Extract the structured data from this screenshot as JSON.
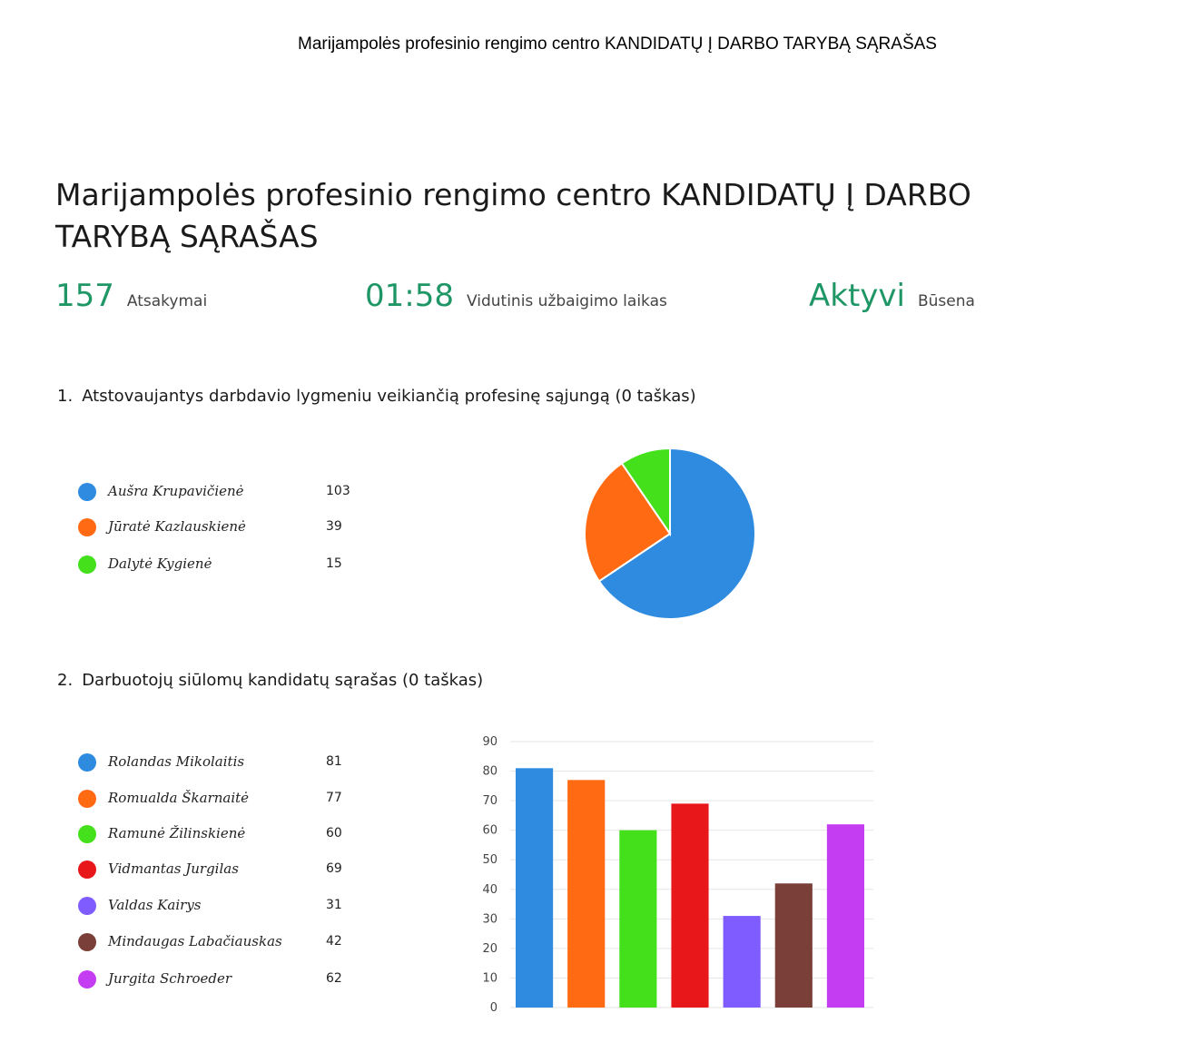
{
  "doc_header": "Marijampolės profesinio rengimo centro KANDIDATŲ Į DARBO TARYBĄ SĄRAŠAS",
  "form": {
    "title": "Marijampolės profesinio rengimo centro KANDIDATŲ Į DARBO TARYBĄ SĄRAŠAS"
  },
  "stats": {
    "responses": {
      "value": "157",
      "label": "Atsakymai"
    },
    "avg_time": {
      "value": "01:58",
      "label": "Vidutinis užbaigimo laikas"
    },
    "status": {
      "value": "Aktyvi",
      "label": "Būsena"
    },
    "accent_color": "#1f9665"
  },
  "questions": [
    {
      "number": "1.",
      "text": "Atstovaujantys darbdavio lygmeniu veikiančią profesinę sąjungą (0 taškas)",
      "options": [
        {
          "name": "Aušra Krupavičienė",
          "count": "103",
          "color": "#2e8be0"
        },
        {
          "name": "Jūratė Kazlauskienė",
          "count": "39",
          "color": "#ff6a13"
        },
        {
          "name": "Dalytė Kygienė",
          "count": "15",
          "color": "#43e01b"
        }
      ]
    },
    {
      "number": "2.",
      "text": "Darbuotojų siūlomų kandidatų sąrašas (0 taškas)",
      "options": [
        {
          "name": "Rolandas Mikolaitis",
          "count": "81",
          "color": "#2e8be0"
        },
        {
          "name": "Romualda Škarnaitė",
          "count": "77",
          "color": "#ff6a13"
        },
        {
          "name": "Ramunė Žilinskienė",
          "count": "60",
          "color": "#43e01b"
        },
        {
          "name": "Vidmantas Jurgilas",
          "count": "69",
          "color": "#e8171a"
        },
        {
          "name": "Valdas Kairys",
          "count": "31",
          "color": "#7f5cff"
        },
        {
          "name": "Mindaugas Labačiauskas",
          "count": "42",
          "color": "#7b3f3a"
        },
        {
          "name": "Jurgita Schroeder",
          "count": "62",
          "color": "#c43df2"
        }
      ]
    }
  ],
  "chart_data": [
    {
      "type": "pie",
      "categories": [
        "Aušra Krupavičienė",
        "Jūratė Kazlauskienė",
        "Dalytė Kygienė"
      ],
      "values": [
        103,
        39,
        15
      ],
      "colors": [
        "#2e8be0",
        "#ff6a13",
        "#43e01b"
      ]
    },
    {
      "type": "bar",
      "categories": [
        "Rolandas Mikolaitis",
        "Romualda Škarnaitė",
        "Ramunė Žilinskienė",
        "Vidmantas Jurgilas",
        "Valdas Kairys",
        "Mindaugas Labačiauskas",
        "Jurgita Schroeder"
      ],
      "values": [
        81,
        77,
        60,
        69,
        31,
        42,
        62
      ],
      "colors": [
        "#2e8be0",
        "#ff6a13",
        "#43e01b",
        "#e8171a",
        "#7f5cff",
        "#7b3f3a",
        "#c43df2"
      ],
      "yticks": [
        "0",
        "10",
        "20",
        "30",
        "40",
        "50",
        "60",
        "70",
        "80",
        "90"
      ],
      "ylim": [
        0,
        90
      ],
      "grid": true
    }
  ]
}
